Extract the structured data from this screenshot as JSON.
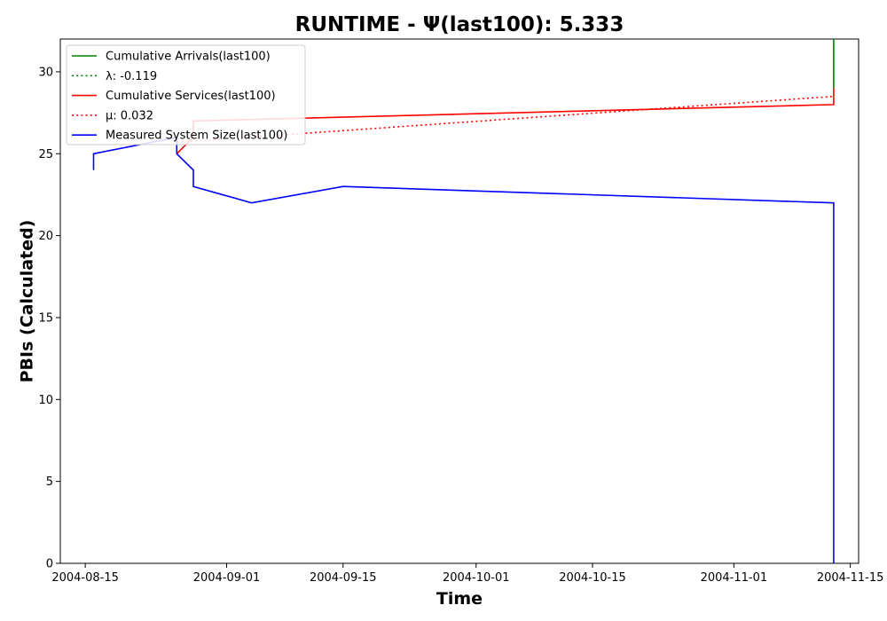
{
  "chart_data": {
    "type": "line",
    "title": "RUNTIME -  Ψ(last100): 5.333",
    "xlabel": "Time",
    "ylabel": "PBIs (Calculated)",
    "xlim": [
      "2004-08-12",
      "2004-11-16"
    ],
    "ylim": [
      0,
      32
    ],
    "x_ticks": [
      "2004-08-15",
      "2004-09-01",
      "2004-09-15",
      "2004-10-01",
      "2004-10-15",
      "2004-11-01",
      "2004-11-15"
    ],
    "y_ticks": [
      0,
      5,
      10,
      15,
      20,
      25,
      30
    ],
    "grid": false,
    "legend_position": "upper-left",
    "series": [
      {
        "name": "Cumulative Arrivals(last100)",
        "color": "#008000",
        "style": "solid",
        "points": [
          [
            "2004-11-13",
            29
          ],
          [
            "2004-11-13",
            32
          ]
        ]
      },
      {
        "name": "λ: -0.119",
        "color": "#008000",
        "style": "dotted",
        "points": []
      },
      {
        "name": "Cumulative Services(last100)",
        "color": "#ff0000",
        "style": "solid",
        "points": [
          [
            "2004-08-26",
            25
          ],
          [
            "2004-08-28",
            26
          ],
          [
            "2004-08-28",
            27
          ],
          [
            "2004-11-13",
            28
          ],
          [
            "2004-11-13",
            29
          ]
        ]
      },
      {
        "name": "μ: 0.032",
        "color": "#ff0000",
        "style": "dotted",
        "points": [
          [
            "2004-08-26",
            25.7
          ],
          [
            "2004-11-13",
            28.5
          ]
        ]
      },
      {
        "name": "Measured System Size(last100)",
        "color": "#0000ff",
        "style": "solid",
        "points": [
          [
            "2004-08-16",
            24
          ],
          [
            "2004-08-16",
            25
          ],
          [
            "2004-08-26",
            26
          ],
          [
            "2004-08-26",
            25
          ],
          [
            "2004-08-28",
            24
          ],
          [
            "2004-08-28",
            23
          ],
          [
            "2004-09-04",
            22
          ],
          [
            "2004-09-15",
            23
          ],
          [
            "2004-11-13",
            22
          ],
          [
            "2004-11-13",
            0
          ]
        ]
      }
    ]
  }
}
